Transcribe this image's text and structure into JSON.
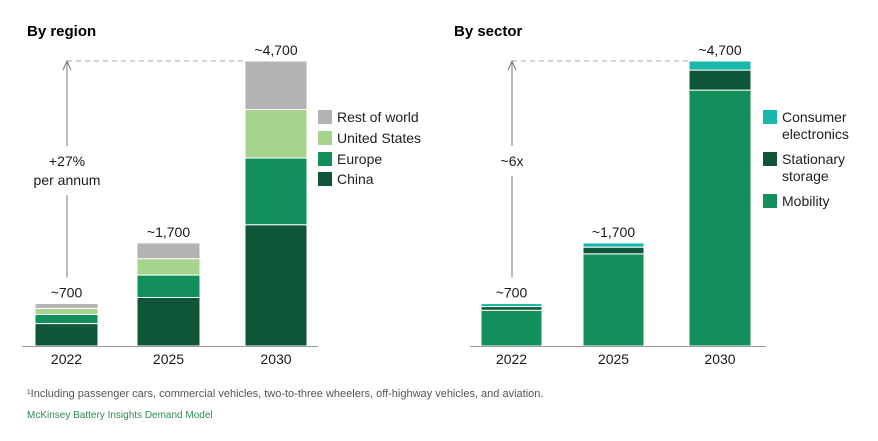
{
  "footnote": "¹Including passenger cars, commercial vehicles, two-to-three wheelers, off-highway vehicles, and aviation.",
  "source": "McKinsey Battery Insights Demand Model",
  "chart_data": [
    {
      "type": "bar",
      "stacked": true,
      "title": "By region",
      "categories": [
        "2022",
        "2025",
        "2030"
      ],
      "totals_labels": [
        "~700",
        "~1,700",
        "~4,700"
      ],
      "ylim": [
        0,
        4700
      ],
      "series": [
        {
          "name": "China",
          "color": "#0e5637",
          "values": [
            370,
            800,
            2000
          ]
        },
        {
          "name": "Europe",
          "color": "#138f5b",
          "values": [
            150,
            370,
            1100
          ]
        },
        {
          "name": "United States",
          "color": "#a6d48f",
          "values": [
            100,
            270,
            800
          ]
        },
        {
          "name": "Rest of world",
          "color": "#b3b3b3",
          "values": [
            80,
            260,
            800
          ]
        }
      ],
      "legend_order": [
        "Rest of world",
        "United States",
        "Europe",
        "China"
      ],
      "annotation": {
        "lines": [
          "+27%",
          "per annum"
        ]
      }
    },
    {
      "type": "bar",
      "stacked": true,
      "title": "By sector",
      "categories": [
        "2022",
        "2025",
        "2030"
      ],
      "totals_labels": [
        "~700",
        "~1,700",
        "~4,700"
      ],
      "ylim": [
        0,
        4700
      ],
      "series": [
        {
          "name": "Mobility",
          "color": "#138f5b",
          "values": [
            590,
            1520,
            4220
          ]
        },
        {
          "name": "Stationary storage",
          "color": "#0e5637",
          "values": [
            60,
            110,
            330
          ]
        },
        {
          "name": "Consumer electronics",
          "color": "#19b8aa",
          "values": [
            50,
            70,
            150
          ]
        }
      ],
      "legend_order": [
        "Consumer electronics",
        "Stationary storage",
        "Mobility"
      ],
      "legend_labels": {
        "Consumer electronics": [
          "Consumer",
          "electronics"
        ],
        "Stationary storage": [
          "Stationary",
          "storage"
        ],
        "Mobility": [
          "Mobility"
        ]
      },
      "annotation": {
        "lines": [
          "~6x"
        ]
      }
    }
  ]
}
